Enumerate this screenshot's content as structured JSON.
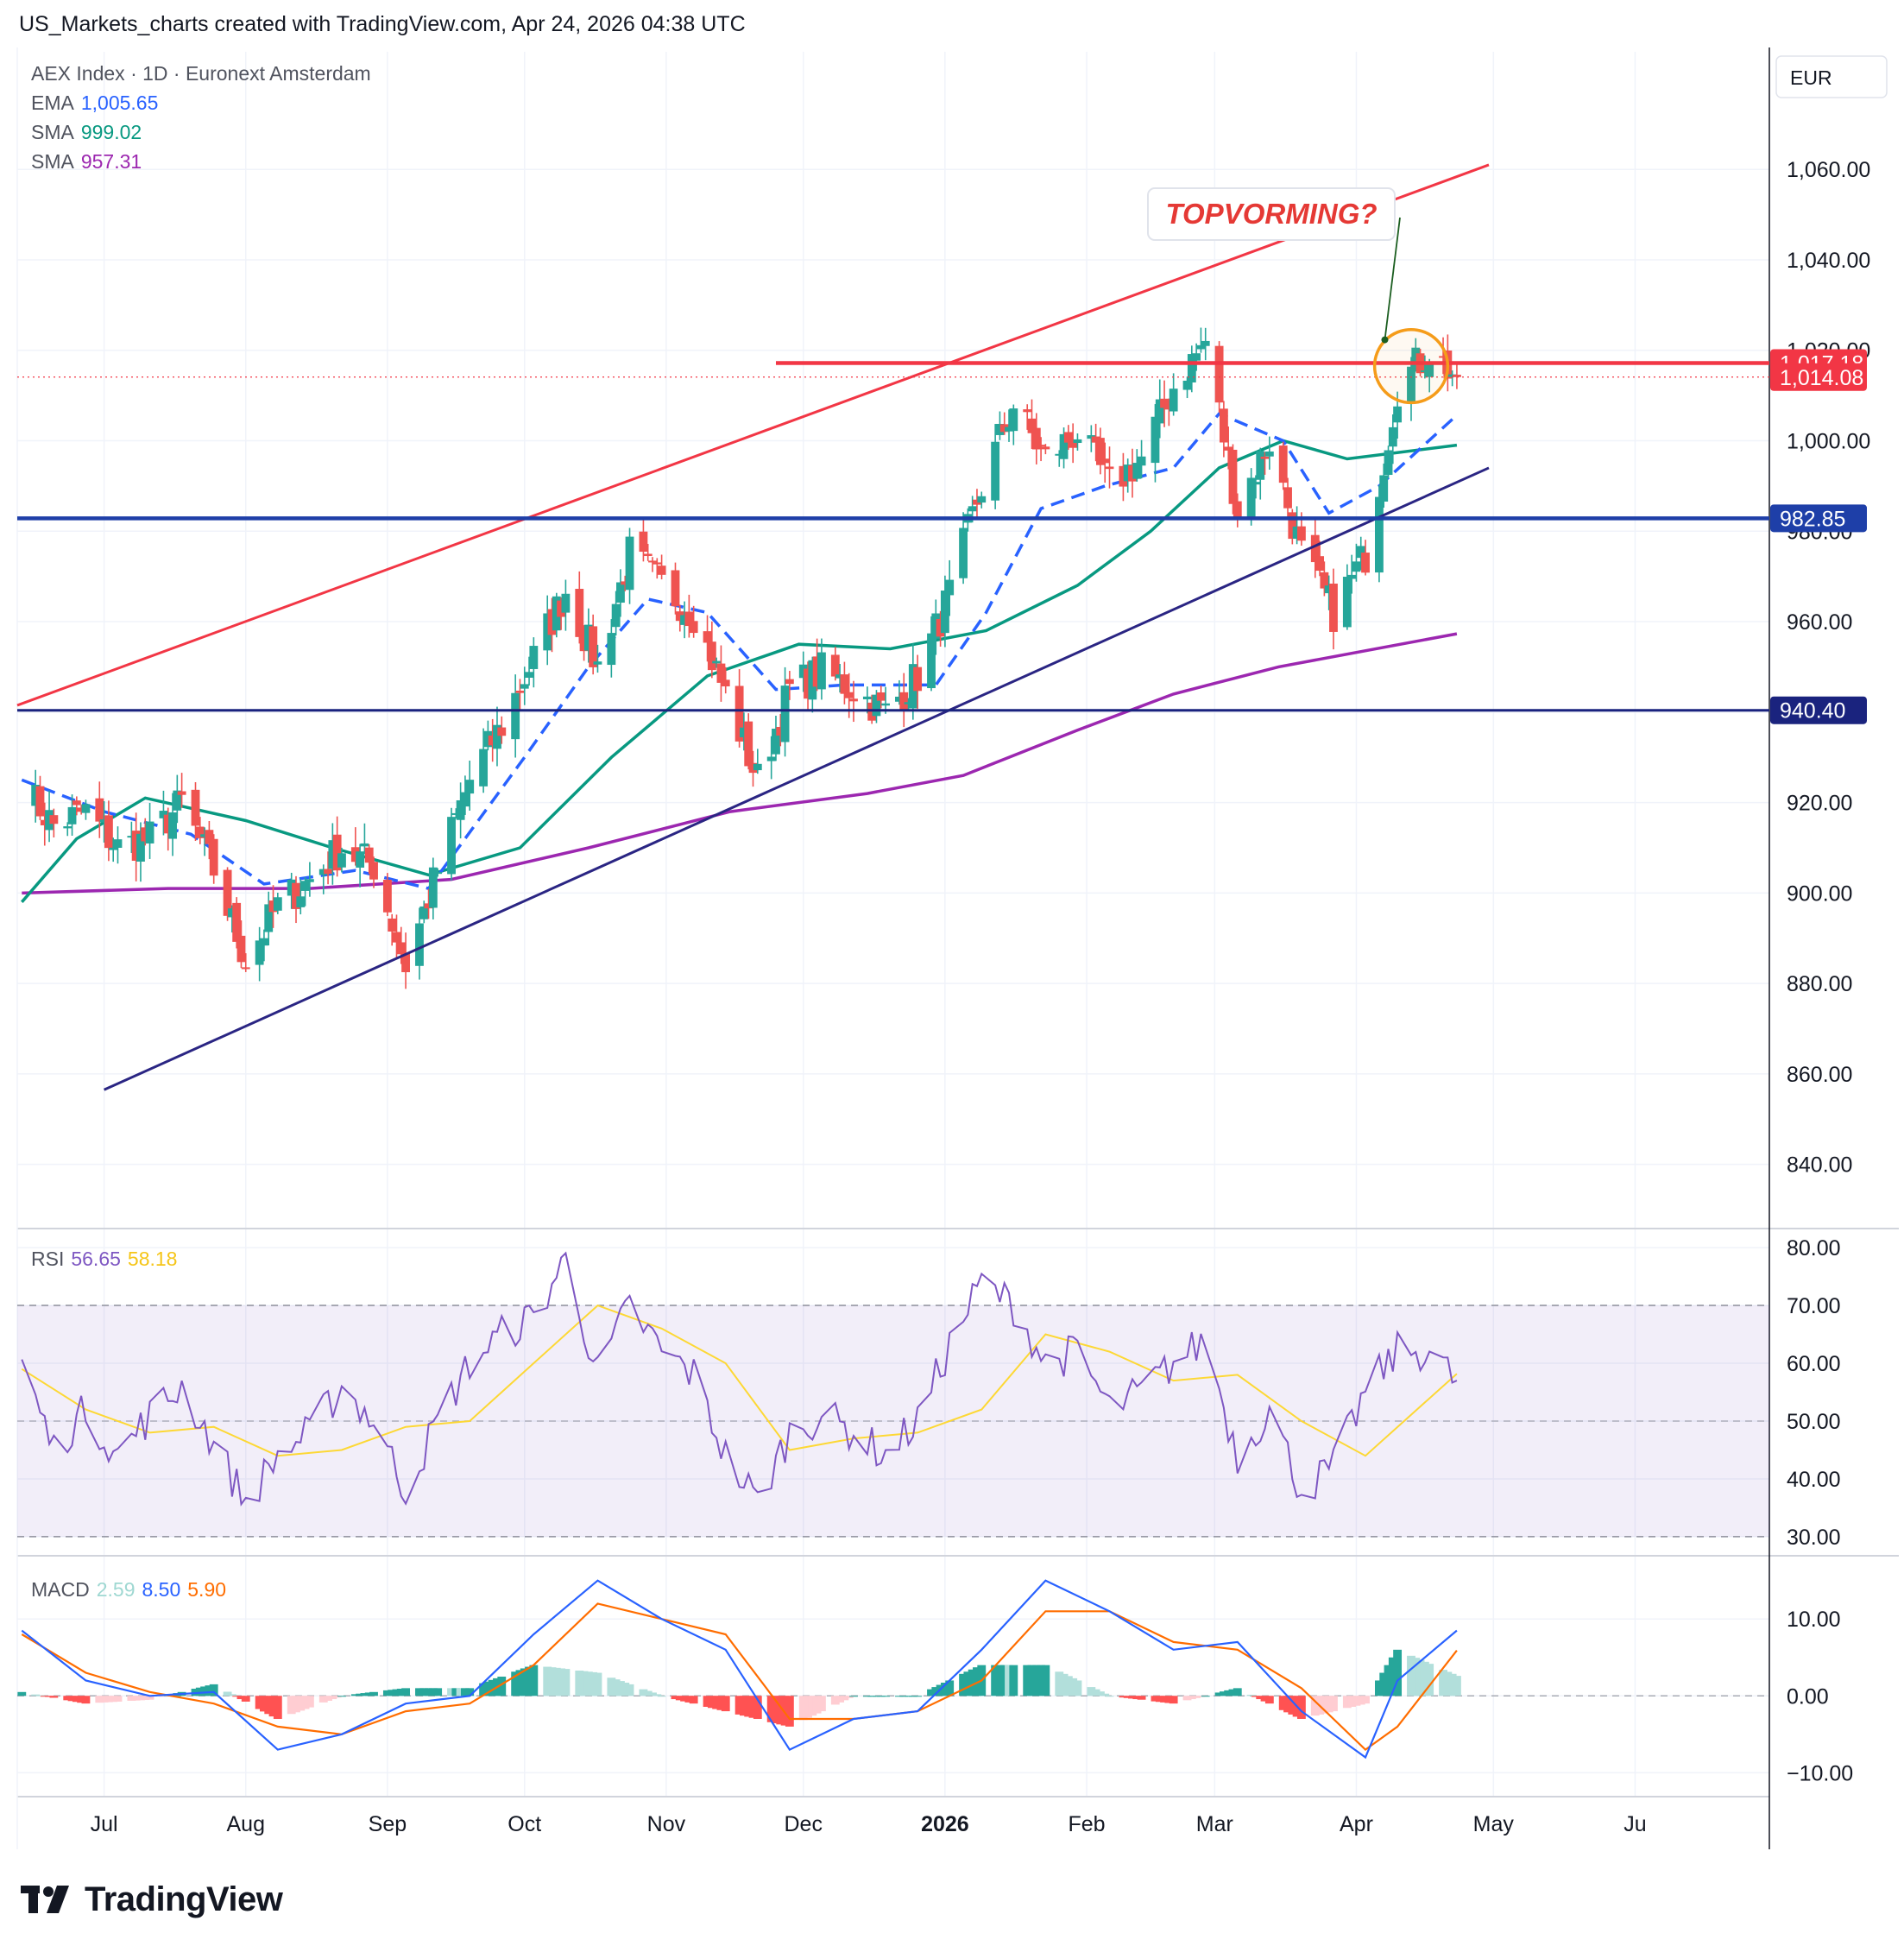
{
  "header": {
    "title": "US_Markets_charts created with TradingView.com, Apr 24, 2026 04:38 UTC"
  },
  "legend": {
    "symbol": "AEX Index · 1D · Euronext Amsterdam",
    "ema_label": "EMA",
    "ema_value": "1,005.65",
    "sma1_label": "SMA",
    "sma1_value": "999.02",
    "sma2_label": "SMA",
    "sma2_value": "957.31",
    "rsi_label": "RSI",
    "rsi_value": "56.65",
    "rsi_ma_value": "58.18",
    "macd_label": "MACD",
    "macd_hist_value": "2.59",
    "macd_value": "8.50",
    "macd_signal_value": "5.90"
  },
  "currency": "EUR",
  "annotation": {
    "text": "TOPVORMING?"
  },
  "footer": {
    "brand": "TradingView"
  },
  "colors": {
    "up": "#26a69a",
    "down": "#ef5350",
    "ema": "#2962ff",
    "sma1": "#089981",
    "sma2": "#9c27b0",
    "rsi": "#7e57c2",
    "rsi_ma": "#fdd835",
    "macd": "#2962ff",
    "signal": "#ff6d00",
    "resistance": "#f23645",
    "support": "#1e3fa8",
    "channel_low": "#2a2583",
    "circle": "#f59c1a"
  },
  "chart_data": [
    {
      "type": "candlestick",
      "panel": "price",
      "symbol": "AEX Index",
      "interval": "1D",
      "currency": "EUR",
      "x_ticks": [
        "Jul",
        "Aug",
        "Sep",
        "Oct",
        "Nov",
        "Dec",
        "2026",
        "Feb",
        "Mar",
        "Apr",
        "May",
        "Ju"
      ],
      "x_range": [
        "2025-06-12",
        "2026-06-30"
      ],
      "y_range": [
        826,
        1086
      ],
      "y_ticks": [
        840,
        860,
        880,
        900,
        920,
        940,
        960,
        980,
        1000,
        1020,
        1040,
        1060
      ],
      "price_labels": [
        {
          "value": 1017.18,
          "text": "1,017.18",
          "style": "resistance"
        },
        {
          "value": 1014.08,
          "text": "1,014.08",
          "style": "last"
        },
        {
          "value": 982.85,
          "text": "982.85",
          "style": "support"
        },
        {
          "value": 940.4,
          "text": "940.40",
          "style": "support2"
        }
      ],
      "close_points": [
        [
          "2025-06-13",
          924
        ],
        [
          "2025-06-20",
          915
        ],
        [
          "2025-06-27",
          918
        ],
        [
          "2025-07-04",
          910
        ],
        [
          "2025-07-11",
          912
        ],
        [
          "2025-07-18",
          920
        ],
        [
          "2025-07-25",
          905
        ],
        [
          "2025-08-01",
          885
        ],
        [
          "2025-08-08",
          897
        ],
        [
          "2025-08-15",
          903
        ],
        [
          "2025-08-22",
          910
        ],
        [
          "2025-08-29",
          906
        ],
        [
          "2025-09-05",
          884
        ],
        [
          "2025-09-12",
          905
        ],
        [
          "2025-09-19",
          925
        ],
        [
          "2025-09-26",
          937
        ],
        [
          "2025-10-03",
          952
        ],
        [
          "2025-10-10",
          967
        ],
        [
          "2025-10-17",
          950
        ],
        [
          "2025-10-24",
          975
        ],
        [
          "2025-10-31",
          968
        ],
        [
          "2025-11-07",
          962
        ],
        [
          "2025-11-14",
          944
        ],
        [
          "2025-11-21",
          925
        ],
        [
          "2025-11-28",
          945
        ],
        [
          "2025-12-05",
          949
        ],
        [
          "2025-12-12",
          945
        ],
        [
          "2025-12-19",
          940
        ],
        [
          "2025-12-26",
          948
        ],
        [
          "2026-01-02",
          966
        ],
        [
          "2026-01-09",
          990
        ],
        [
          "2026-01-16",
          1008
        ],
        [
          "2026-01-23",
          996
        ],
        [
          "2026-01-30",
          1002
        ],
        [
          "2026-02-06",
          990
        ],
        [
          "2026-02-13",
          996
        ],
        [
          "2026-02-20",
          1012
        ],
        [
          "2026-02-27",
          1022
        ],
        [
          "2026-03-06",
          985
        ],
        [
          "2026-03-13",
          1000
        ],
        [
          "2026-03-20",
          975
        ],
        [
          "2026-03-27",
          962
        ],
        [
          "2026-04-03",
          975
        ],
        [
          "2026-04-10",
          1012
        ],
        [
          "2026-04-17",
          1020
        ],
        [
          "2026-04-23",
          1014.08
        ]
      ],
      "ema": [
        [
          "2025-06-13",
          925
        ],
        [
          "2025-07-01",
          918
        ],
        [
          "2025-07-20",
          913
        ],
        [
          "2025-08-05",
          902
        ],
        [
          "2025-08-25",
          905
        ],
        [
          "2025-09-10",
          901
        ],
        [
          "2025-10-01",
          930
        ],
        [
          "2025-10-15",
          950
        ],
        [
          "2025-10-28",
          965
        ],
        [
          "2025-11-10",
          962
        ],
        [
          "2025-11-25",
          945
        ],
        [
          "2025-12-10",
          946
        ],
        [
          "2025-12-30",
          946
        ],
        [
          "2026-01-10",
          962
        ],
        [
          "2026-01-22",
          985
        ],
        [
          "2026-02-05",
          990
        ],
        [
          "2026-02-20",
          994
        ],
        [
          "2026-03-02",
          1006
        ],
        [
          "2026-03-16",
          1000
        ],
        [
          "2026-03-26",
          984
        ],
        [
          "2026-04-06",
          990
        ],
        [
          "2026-04-23",
          1005.65
        ]
      ],
      "sma50": [
        [
          "2025-06-13",
          898
        ],
        [
          "2025-06-25",
          912
        ],
        [
          "2025-07-10",
          921
        ],
        [
          "2025-08-01",
          916
        ],
        [
          "2025-08-20",
          910
        ],
        [
          "2025-09-10",
          904
        ],
        [
          "2025-09-30",
          910
        ],
        [
          "2025-10-20",
          930
        ],
        [
          "2025-11-10",
          948
        ],
        [
          "2025-11-30",
          955
        ],
        [
          "2025-12-20",
          954
        ],
        [
          "2026-01-10",
          958
        ],
        [
          "2026-01-30",
          968
        ],
        [
          "2026-02-15",
          980
        ],
        [
          "2026-03-02",
          994
        ],
        [
          "2026-03-16",
          1000
        ],
        [
          "2026-03-30",
          996
        ],
        [
          "2026-04-23",
          999.02
        ]
      ],
      "sma200": [
        [
          "2025-06-13",
          900
        ],
        [
          "2025-07-15",
          901
        ],
        [
          "2025-08-15",
          901
        ],
        [
          "2025-09-15",
          903
        ],
        [
          "2025-10-15",
          910
        ],
        [
          "2025-11-15",
          918
        ],
        [
          "2025-12-15",
          922
        ],
        [
          "2026-01-05",
          926
        ],
        [
          "2026-01-30",
          936
        ],
        [
          "2026-02-20",
          944
        ],
        [
          "2026-03-15",
          950
        ],
        [
          "2026-04-23",
          957.31
        ]
      ],
      "horizontal_lines": [
        {
          "value": 1017.18,
          "from": "2025-11-25",
          "style": "resistance"
        },
        {
          "value": 982.85,
          "from": "2025-06-12",
          "style": "support"
        },
        {
          "value": 940.4,
          "from": "2025-06-12",
          "style": "support2"
        }
      ],
      "trend_lines": [
        {
          "from": [
            "2025-06-12",
            941.5
          ],
          "to": [
            "2026-04-30",
            1061
          ],
          "style": "resistance"
        },
        {
          "from": [
            "2025-07-01",
            856.5
          ],
          "to": [
            "2026-04-30",
            994
          ],
          "style": "channel_low"
        }
      ],
      "highlight_circle": {
        "center": [
          "2026-04-13",
          1016.5
        ],
        "radius_days": 8
      }
    },
    {
      "type": "line",
      "panel": "rsi",
      "name": "RSI",
      "y_range": [
        27,
        83
      ],
      "y_ticks": [
        30,
        40,
        50,
        60,
        70,
        80
      ],
      "bands": [
        30,
        50,
        70
      ],
      "series": [
        {
          "name": "RSI",
          "points": [
            [
              "2025-06-13",
              60
            ],
            [
              "2025-06-20",
              45
            ],
            [
              "2025-06-27",
              52
            ],
            [
              "2025-07-04",
              44
            ],
            [
              "2025-07-11",
              51
            ],
            [
              "2025-07-18",
              56
            ],
            [
              "2025-07-25",
              46
            ],
            [
              "2025-08-01",
              36
            ],
            [
              "2025-08-08",
              44
            ],
            [
              "2025-08-15",
              48
            ],
            [
              "2025-08-22",
              56
            ],
            [
              "2025-08-29",
              50
            ],
            [
              "2025-09-05",
              38
            ],
            [
              "2025-09-12",
              50
            ],
            [
              "2025-09-19",
              60
            ],
            [
              "2025-09-26",
              65
            ],
            [
              "2025-10-03",
              68
            ],
            [
              "2025-10-10",
              78
            ],
            [
              "2025-10-17",
              58
            ],
            [
              "2025-10-24",
              70
            ],
            [
              "2025-10-31",
              62
            ],
            [
              "2025-11-07",
              58
            ],
            [
              "2025-11-14",
              44
            ],
            [
              "2025-11-21",
              36
            ],
            [
              "2025-11-28",
              48
            ],
            [
              "2025-12-05",
              51
            ],
            [
              "2025-12-12",
              48
            ],
            [
              "2025-12-19",
              44
            ],
            [
              "2025-12-26",
              50
            ],
            [
              "2026-01-02",
              63
            ],
            [
              "2026-01-09",
              74
            ],
            [
              "2026-01-16",
              70
            ],
            [
              "2026-01-23",
              60
            ],
            [
              "2026-01-30",
              62
            ],
            [
              "2026-02-06",
              52
            ],
            [
              "2026-02-13",
              55
            ],
            [
              "2026-02-20",
              60
            ],
            [
              "2026-02-27",
              64
            ],
            [
              "2026-03-06",
              44
            ],
            [
              "2026-03-13",
              52
            ],
            [
              "2026-03-20",
              38
            ],
            [
              "2026-03-27",
              42
            ],
            [
              "2026-04-03",
              55
            ],
            [
              "2026-04-10",
              62
            ],
            [
              "2026-04-17",
              62
            ],
            [
              "2026-04-23",
              56.65
            ]
          ]
        },
        {
          "name": "RSI MA",
          "points": [
            [
              "2025-06-13",
              59
            ],
            [
              "2025-06-27",
              52
            ],
            [
              "2025-07-11",
              48
            ],
            [
              "2025-07-25",
              49
            ],
            [
              "2025-08-08",
              44
            ],
            [
              "2025-08-22",
              45
            ],
            [
              "2025-09-05",
              49
            ],
            [
              "2025-09-19",
              50
            ],
            [
              "2025-10-03",
              60
            ],
            [
              "2025-10-17",
              70
            ],
            [
              "2025-10-31",
              66
            ],
            [
              "2025-11-14",
              60
            ],
            [
              "2025-11-28",
              45
            ],
            [
              "2025-12-12",
              47
            ],
            [
              "2025-12-26",
              48
            ],
            [
              "2026-01-09",
              52
            ],
            [
              "2026-01-23",
              65
            ],
            [
              "2026-02-06",
              62
            ],
            [
              "2026-02-20",
              57
            ],
            [
              "2026-03-06",
              58
            ],
            [
              "2026-03-20",
              50
            ],
            [
              "2026-04-03",
              44
            ],
            [
              "2026-04-23",
              58.18
            ]
          ]
        }
      ]
    },
    {
      "type": "bar+line",
      "panel": "macd",
      "name": "MACD",
      "y_range": [
        -13,
        18
      ],
      "y_ticks": [
        -10,
        0,
        10
      ],
      "series": [
        {
          "name": "MACD",
          "points": [
            [
              "2025-06-13",
              8.5
            ],
            [
              "2025-06-27",
              2
            ],
            [
              "2025-07-11",
              0
            ],
            [
              "2025-07-25",
              0.5
            ],
            [
              "2025-08-08",
              -7
            ],
            [
              "2025-08-22",
              -5
            ],
            [
              "2025-09-05",
              -1
            ],
            [
              "2025-09-19",
              0
            ],
            [
              "2025-10-03",
              8
            ],
            [
              "2025-10-17",
              15
            ],
            [
              "2025-10-31",
              10
            ],
            [
              "2025-11-14",
              6
            ],
            [
              "2025-11-28",
              -7
            ],
            [
              "2025-12-12",
              -3
            ],
            [
              "2025-12-26",
              -2
            ],
            [
              "2026-01-09",
              6
            ],
            [
              "2026-01-23",
              15
            ],
            [
              "2026-02-06",
              11
            ],
            [
              "2026-02-20",
              6
            ],
            [
              "2026-03-06",
              7
            ],
            [
              "2026-03-20",
              -2
            ],
            [
              "2026-04-03",
              -8
            ],
            [
              "2026-04-10",
              2
            ],
            [
              "2026-04-23",
              8.5
            ]
          ]
        },
        {
          "name": "Signal",
          "points": [
            [
              "2025-06-13",
              8
            ],
            [
              "2025-06-27",
              3
            ],
            [
              "2025-07-11",
              0.5
            ],
            [
              "2025-07-25",
              -1
            ],
            [
              "2025-08-08",
              -4
            ],
            [
              "2025-08-22",
              -5
            ],
            [
              "2025-09-05",
              -2
            ],
            [
              "2025-09-19",
              -1
            ],
            [
              "2025-10-03",
              4
            ],
            [
              "2025-10-17",
              12
            ],
            [
              "2025-10-31",
              10
            ],
            [
              "2025-11-14",
              8
            ],
            [
              "2025-11-28",
              -3
            ],
            [
              "2025-12-12",
              -3
            ],
            [
              "2025-12-26",
              -2
            ],
            [
              "2026-01-09",
              2
            ],
            [
              "2026-01-23",
              11
            ],
            [
              "2026-02-06",
              11
            ],
            [
              "2026-02-20",
              7
            ],
            [
              "2026-03-06",
              6
            ],
            [
              "2026-03-20",
              1
            ],
            [
              "2026-04-03",
              -7
            ],
            [
              "2026-04-10",
              -4
            ],
            [
              "2026-04-23",
              5.9
            ]
          ]
        }
      ],
      "histogram_last": 2.59
    }
  ]
}
